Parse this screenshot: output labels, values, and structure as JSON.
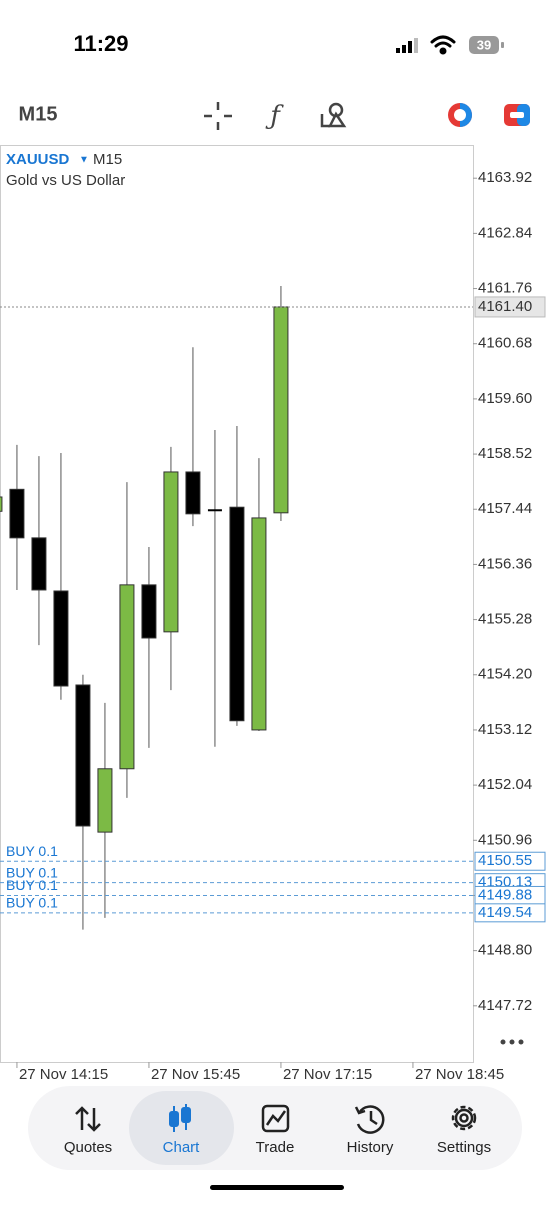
{
  "status_bar": {
    "time": "11:29",
    "battery": "39"
  },
  "toolbar": {
    "timeframe": "M15"
  },
  "chart_data": {
    "type": "candlestick",
    "symbol": "XAUUSD",
    "timeframe": "M15",
    "description": "Gold vs US Dollar",
    "x": [
      0,
      1,
      2,
      3,
      4,
      5,
      6,
      7,
      8,
      9,
      10,
      11,
      12,
      13
    ],
    "open": [
      4157.4,
      4157.83,
      4156.88,
      4155.84,
      4154.0,
      4151.12,
      4152.36,
      4155.96,
      4155.04,
      4158.17,
      4157.42,
      4157.48,
      4153.12,
      4157.37
    ],
    "high": [
      4157.8,
      4158.7,
      4158.48,
      4158.54,
      4154.2,
      4153.65,
      4157.97,
      4156.7,
      4158.66,
      4160.61,
      4158.99,
      4159.07,
      4158.44,
      4161.81
    ],
    "low": [
      4157.3,
      4155.86,
      4154.78,
      4153.71,
      4149.21,
      4149.44,
      4151.79,
      4152.77,
      4153.9,
      4157.11,
      4152.79,
      4153.2,
      4153.1,
      4157.21
    ],
    "close": [
      4157.68,
      4156.88,
      4155.86,
      4153.98,
      4151.24,
      4152.36,
      4155.96,
      4154.92,
      4158.17,
      4157.35,
      4157.42,
      4153.3,
      4157.27,
      4161.4
    ],
    "colors": {
      "up": "#7cba45",
      "down": "#000000"
    },
    "xlim": [
      0.23,
      21.73
    ],
    "xticks": [
      {
        "value": 1,
        "label": "27 Nov 14:15"
      },
      {
        "value": 7,
        "label": "27 Nov 15:45"
      },
      {
        "value": 13,
        "label": "27 Nov 17:15"
      },
      {
        "value": 19,
        "label": "27 Nov 18:45"
      }
    ],
    "ylim": [
      4146.62,
      4164.57
    ],
    "yticks": [
      4163.92,
      4162.84,
      4161.76,
      4160.68,
      {
        "value": 4159.6,
        "label": "4159.60"
      },
      4158.52,
      4157.44,
      4156.36,
      4155.28,
      {
        "value": 4154.2,
        "label": "4154.20"
      },
      4153.12,
      4152.04,
      4150.96,
      4149.88,
      {
        "value": 4148.8,
        "label": "4148.80"
      },
      4147.72
    ],
    "current_price": {
      "value": 4161.4,
      "label": "4161.40"
    },
    "orders": [
      {
        "label": "BUY 0.1",
        "price": 4150.55
      },
      {
        "label": "BUY 0.1",
        "price": 4150.13
      },
      {
        "label": "BUY 0.1",
        "price": 4149.88
      },
      {
        "label": "BUY 0.1",
        "price": 4149.54
      }
    ]
  },
  "nav": {
    "items": [
      "Quotes",
      "Chart",
      "Trade",
      "History",
      "Settings"
    ]
  }
}
